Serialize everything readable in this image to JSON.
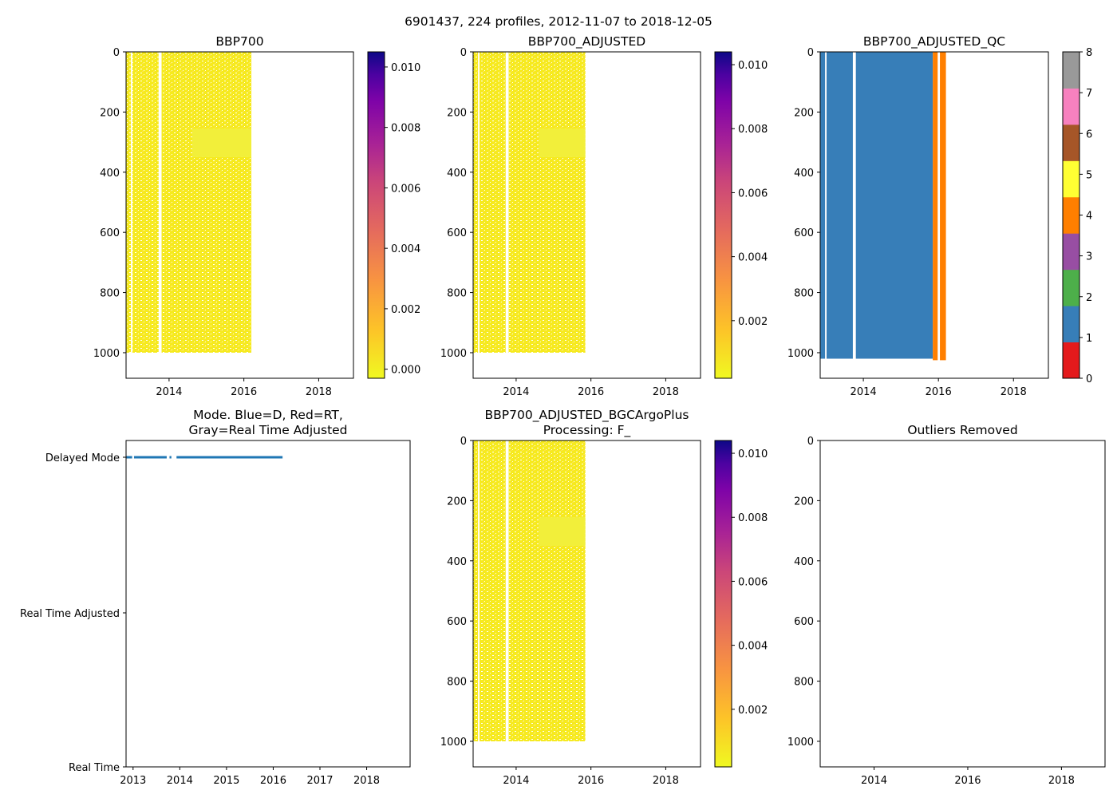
{
  "suptitle": "6901437, 224 profiles, 2012-11-07 to 2018-12-05",
  "panels": {
    "bbp700": {
      "title": "BBP700"
    },
    "adjusted": {
      "title": "BBP700_ADJUSTED"
    },
    "qc": {
      "title": "BBP700_ADJUSTED_QC"
    },
    "mode": {
      "title_line1": "Mode. Blue=D, Red=RT,",
      "title_line2": "Gray=Real Time Adjusted"
    },
    "bgc": {
      "title_line1": "BBP700_ADJUSTED_BGCArgoPlus",
      "title_line2": "Processing: F_"
    },
    "outliers": {
      "title": "Outliers Removed"
    }
  },
  "colors": {
    "section_fill": "#f6ea1e",
    "section_band": "#f2ef3a",
    "qc_blue": "#377eb8",
    "qc_orange": "#ff7f00"
  },
  "chart_data": [
    {
      "id": "bbp700",
      "type": "heatmap",
      "title": "BBP700",
      "xlim": [
        2012.85,
        2018.93
      ],
      "xticks": [
        "2014",
        "2016",
        "2018"
      ],
      "ylim": [
        1085,
        0
      ],
      "yticks": [
        "0",
        "200",
        "400",
        "600",
        "800",
        "1000"
      ],
      "data_extent": {
        "x": [
          2012.85,
          2016.2
        ],
        "y": [
          0,
          1000
        ]
      },
      "colorbar": {
        "cmap": "plasma_r",
        "range": [
          -0.0003,
          0.0105
        ],
        "ticks": [
          "0.000",
          "0.002",
          "0.004",
          "0.006",
          "0.008",
          "0.010"
        ]
      }
    },
    {
      "id": "adjusted",
      "type": "heatmap",
      "title": "BBP700_ADJUSTED",
      "xlim": [
        2012.85,
        2018.93
      ],
      "xticks": [
        "2014",
        "2016",
        "2018"
      ],
      "ylim": [
        1085,
        0
      ],
      "yticks": [
        "0",
        "200",
        "400",
        "600",
        "800",
        "1000"
      ],
      "data_extent": {
        "x": [
          2012.85,
          2015.85
        ],
        "y": [
          0,
          1000
        ]
      },
      "colorbar": {
        "cmap": "plasma_r",
        "range": [
          0.0002,
          0.0104
        ],
        "ticks": [
          "0.002",
          "0.004",
          "0.006",
          "0.008",
          "0.010"
        ]
      }
    },
    {
      "id": "qc",
      "type": "heatmap",
      "title": "BBP700_ADJUSTED_QC",
      "xlim": [
        2012.85,
        2018.93
      ],
      "xticks": [
        "2014",
        "2016",
        "2018"
      ],
      "ylim": [
        1085,
        0
      ],
      "yticks": [
        "0",
        "200",
        "400",
        "600",
        "800",
        "1000"
      ],
      "blocks": [
        {
          "flag": 1,
          "x": [
            2012.85,
            2015.85
          ],
          "y": [
            0,
            1020
          ]
        },
        {
          "flag": 4,
          "x": [
            2015.85,
            2016.2
          ],
          "y": [
            0,
            1025
          ]
        }
      ],
      "colorbar": {
        "range": [
          0,
          8
        ],
        "ticks": [
          "0",
          "1",
          "2",
          "3",
          "4",
          "5",
          "6",
          "7",
          "8"
        ],
        "colors": [
          "#e41a1c",
          "#377eb8",
          "#4daf4a",
          "#984ea3",
          "#ff7f00",
          "#ffff33",
          "#a65628",
          "#f781bf",
          "#999999"
        ]
      }
    },
    {
      "id": "mode",
      "type": "scatter",
      "title": "Mode. Blue=D, Red=RT, Gray=Real Time Adjusted",
      "xlim": [
        2012.85,
        2018.93
      ],
      "xticks": [
        "2013",
        "2014",
        "2015",
        "2016",
        "2017",
        "2018"
      ],
      "yticks": [
        "Delayed Mode",
        "Real Time Adjusted",
        "Real Time"
      ],
      "segments": [
        {
          "mode": "Delayed Mode",
          "x": [
            2012.85,
            2012.98
          ]
        },
        {
          "mode": "Delayed Mode",
          "x": [
            2013.02,
            2013.72
          ]
        },
        {
          "mode": "Delayed Mode",
          "x": [
            2013.78,
            2013.82
          ]
        },
        {
          "mode": "Delayed Mode",
          "x": [
            2013.93,
            2016.2
          ]
        }
      ]
    },
    {
      "id": "bgc",
      "type": "heatmap",
      "title": "BBP700_ADJUSTED_BGCArgoPlus Processing: F_",
      "xlim": [
        2012.85,
        2018.93
      ],
      "xticks": [
        "2014",
        "2016",
        "2018"
      ],
      "ylim": [
        1085,
        0
      ],
      "yticks": [
        "0",
        "200",
        "400",
        "600",
        "800",
        "1000"
      ],
      "data_extent": {
        "x": [
          2012.85,
          2015.85
        ],
        "y": [
          0,
          1000
        ]
      },
      "colorbar": {
        "cmap": "plasma_r",
        "range": [
          0.0002,
          0.0104
        ],
        "ticks": [
          "0.002",
          "0.004",
          "0.006",
          "0.008",
          "0.010"
        ]
      }
    },
    {
      "id": "outliers",
      "type": "heatmap",
      "title": "Outliers Removed",
      "xlim": [
        2012.85,
        2018.93
      ],
      "xticks": [
        "2014",
        "2016",
        "2018"
      ],
      "ylim": [
        1085,
        0
      ],
      "yticks": [
        "0",
        "200",
        "400",
        "600",
        "800",
        "1000"
      ]
    }
  ]
}
